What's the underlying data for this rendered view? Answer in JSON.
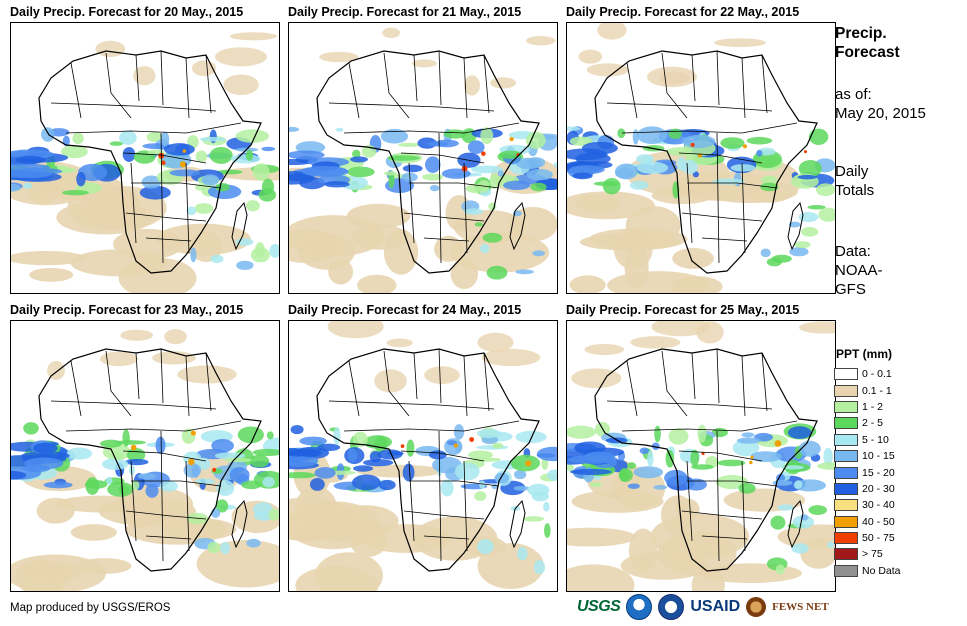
{
  "panels": [
    {
      "title": "Daily Precip. Forecast for 20 May., 2015"
    },
    {
      "title": "Daily Precip. Forecast for 21 May., 2015"
    },
    {
      "title": "Daily Precip. Forecast for 22 May., 2015"
    },
    {
      "title": "Daily Precip. Forecast for 23 May., 2015"
    },
    {
      "title": "Daily Precip. Forecast for 24 May., 2015"
    },
    {
      "title": "Daily Precip. Forecast for 25 May., 2015"
    }
  ],
  "sidebar": {
    "title_line1": "Precip.",
    "title_line2": "Forecast",
    "asof_label": "as of:",
    "asof_date": "May 20, 2015",
    "totals_line1": "Daily",
    "totals_line2": "Totals",
    "data_line1": "Data:",
    "data_line2": "NOAA-",
    "data_line3": "GFS"
  },
  "legend": {
    "title": "PPT (mm)",
    "items": [
      {
        "label": "0 - 0.1",
        "color": "#ffffff"
      },
      {
        "label": "0.1 - 1",
        "color": "#e8d5b0"
      },
      {
        "label": "1 - 2",
        "color": "#b4f0a0"
      },
      {
        "label": "2 - 5",
        "color": "#5cd85c"
      },
      {
        "label": "5 - 10",
        "color": "#a8e8f0"
      },
      {
        "label": "10 - 15",
        "color": "#78b8f0"
      },
      {
        "label": "15 - 20",
        "color": "#4c8cf0"
      },
      {
        "label": "20 - 30",
        "color": "#2060e0"
      },
      {
        "label": "30 - 40",
        "color": "#f8e080"
      },
      {
        "label": "40 - 50",
        "color": "#f0a000"
      },
      {
        "label": "50 - 75",
        "color": "#f04000"
      },
      {
        "label": "> 75",
        "color": "#a01818"
      },
      {
        "label": "No Data",
        "color": "#909090"
      }
    ]
  },
  "footer": {
    "credit": "Map produced by USGS/EROS",
    "logo_usgs": "USGS",
    "logo_usaid": "USAID",
    "logo_fews": "FEWS NET"
  }
}
